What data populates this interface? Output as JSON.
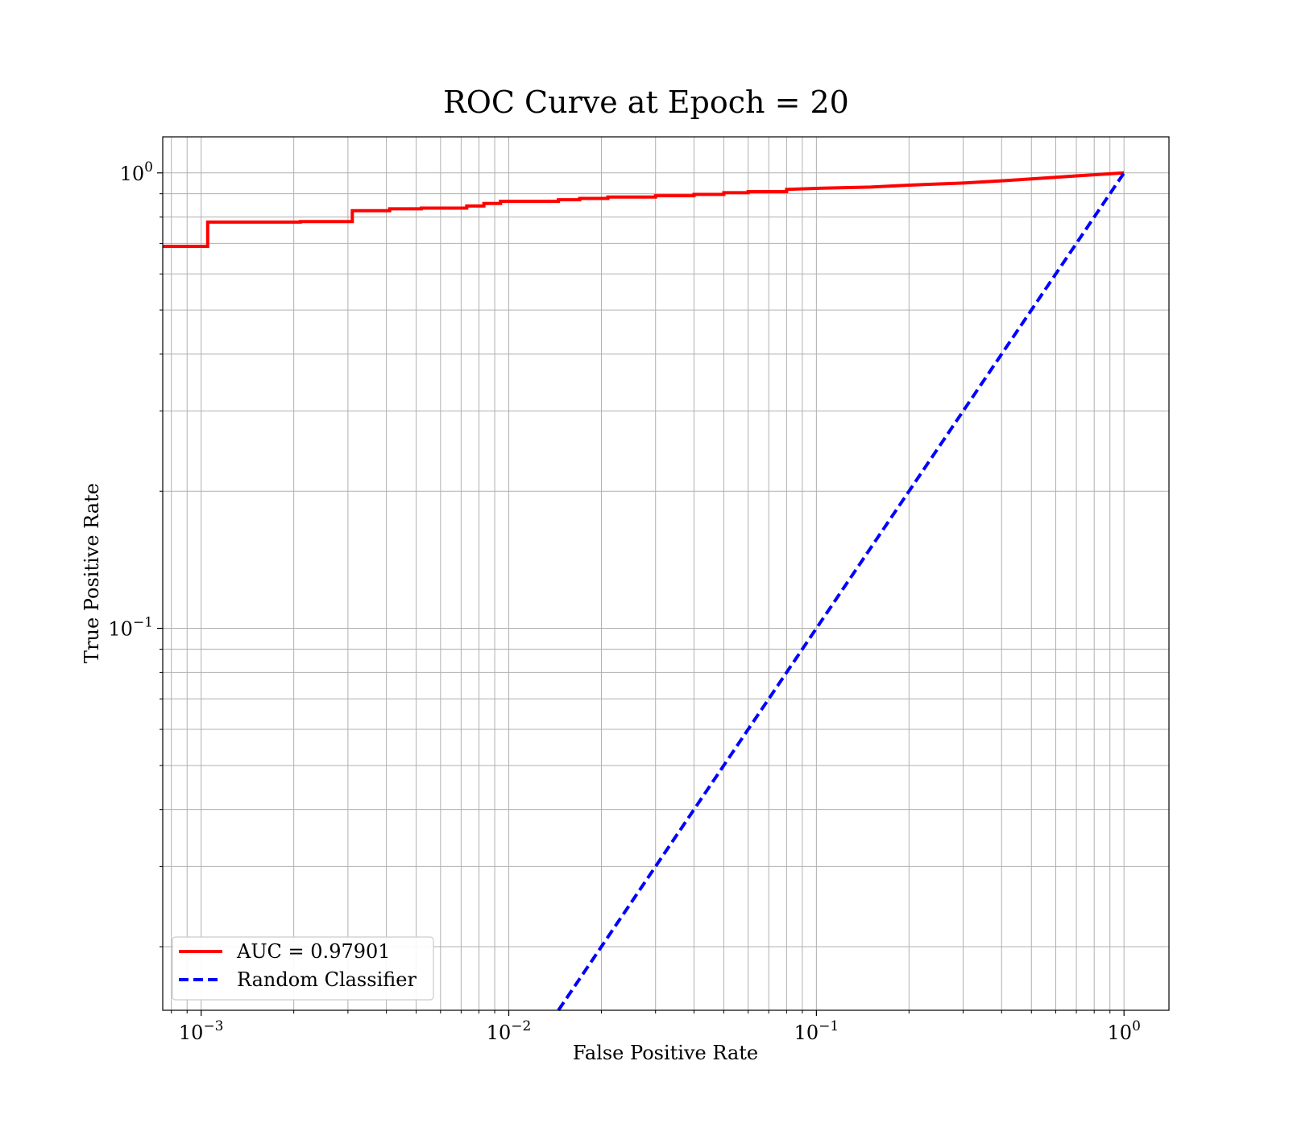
{
  "chart_data": {
    "type": "line",
    "title": "ROC Curve at Epoch = 20",
    "xlabel": "False Positive Rate",
    "ylabel": "True Positive Rate",
    "xscale": "log",
    "yscale": "log",
    "xlim": [
      0.00075,
      1.4
    ],
    "ylim": [
      0.0145,
      1.2
    ],
    "x_ticks": [
      {
        "value": 0.001,
        "base": "10",
        "exp": "−3"
      },
      {
        "value": 0.01,
        "base": "10",
        "exp": "−2"
      },
      {
        "value": 0.1,
        "base": "10",
        "exp": "−1"
      },
      {
        "value": 1,
        "base": "10",
        "exp": "0"
      }
    ],
    "y_ticks": [
      {
        "value": 0.1,
        "base": "10",
        "exp": "−1"
      },
      {
        "value": 1,
        "base": "10",
        "exp": "0"
      }
    ],
    "grid": true,
    "legend_position": "lower-left",
    "series": [
      {
        "name": "AUC = 0.97901",
        "color": "#ff0000",
        "style": "solid",
        "step": true,
        "points": [
          [
            0.00075,
            0.69
          ],
          [
            0.00105,
            0.69
          ],
          [
            0.00105,
            0.78
          ],
          [
            0.0021,
            0.78
          ],
          [
            0.0021,
            0.782
          ],
          [
            0.0031,
            0.782
          ],
          [
            0.0031,
            0.826
          ],
          [
            0.0041,
            0.826
          ],
          [
            0.0041,
            0.834
          ],
          [
            0.0052,
            0.834
          ],
          [
            0.0052,
            0.837
          ],
          [
            0.0073,
            0.837
          ],
          [
            0.0073,
            0.846
          ],
          [
            0.0083,
            0.846
          ],
          [
            0.0083,
            0.857
          ],
          [
            0.0094,
            0.857
          ],
          [
            0.0094,
            0.866
          ],
          [
            0.0145,
            0.866
          ],
          [
            0.0145,
            0.873
          ],
          [
            0.017,
            0.873
          ],
          [
            0.017,
            0.879
          ],
          [
            0.021,
            0.879
          ],
          [
            0.021,
            0.885
          ],
          [
            0.03,
            0.885
          ],
          [
            0.03,
            0.891
          ],
          [
            0.04,
            0.891
          ],
          [
            0.04,
            0.897
          ],
          [
            0.05,
            0.897
          ],
          [
            0.05,
            0.905
          ],
          [
            0.06,
            0.905
          ],
          [
            0.06,
            0.91
          ],
          [
            0.08,
            0.91
          ],
          [
            0.08,
            0.92
          ],
          [
            0.1,
            0.925
          ],
          [
            0.15,
            0.931
          ],
          [
            0.2,
            0.94
          ],
          [
            0.3,
            0.95
          ],
          [
            0.4,
            0.961
          ],
          [
            0.5,
            0.97
          ],
          [
            0.7,
            0.985
          ],
          [
            1.0,
            1.0
          ]
        ]
      },
      {
        "name": "Random Classifier",
        "color": "#0000ff",
        "style": "dashed",
        "step": false,
        "points": [
          [
            0.0145,
            0.0145
          ],
          [
            1.0,
            1.0
          ]
        ]
      }
    ]
  }
}
